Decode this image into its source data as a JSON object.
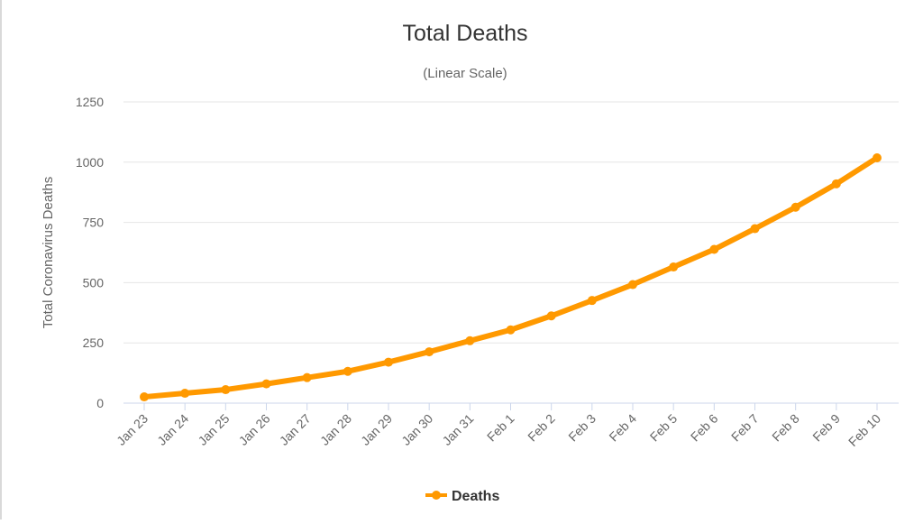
{
  "chart_data": {
    "type": "line",
    "title": "Total Deaths",
    "subtitle": "(Linear Scale)",
    "xlabel": "",
    "ylabel": "Total Coronavirus Deaths",
    "ylim": [
      0,
      1250
    ],
    "yticks": [
      0,
      250,
      500,
      750,
      1000,
      1250
    ],
    "categories": [
      "Jan 23",
      "Jan 24",
      "Jan 25",
      "Jan 26",
      "Jan 27",
      "Jan 28",
      "Jan 29",
      "Jan 30",
      "Jan 31",
      "Feb 1",
      "Feb 2",
      "Feb 3",
      "Feb 4",
      "Feb 5",
      "Feb 6",
      "Feb 7",
      "Feb 8",
      "Feb 9",
      "Feb 10"
    ],
    "series": [
      {
        "name": "Deaths",
        "color": "#FF9900",
        "values": [
          26,
          41,
          56,
          80,
          106,
          132,
          170,
          213,
          259,
          304,
          362,
          426,
          492,
          565,
          638,
          724,
          813,
          910,
          1018
        ]
      }
    ],
    "grid": true,
    "legend_position": "bottom-center"
  }
}
